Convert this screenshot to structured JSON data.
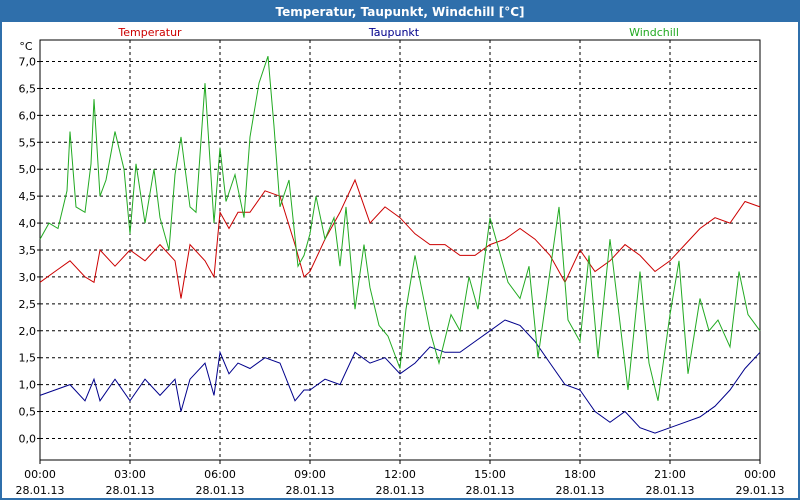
{
  "window": {
    "title": "Temperatur, Taupunkt, Windchill [°C]"
  },
  "colors": {
    "titlebar": "#2f6fab",
    "temperatur": "#cc0000",
    "taupunkt": "#00008b",
    "windchill": "#22aa22",
    "grid": "#000000"
  },
  "chart_data": {
    "type": "line",
    "title": "Temperatur, Taupunkt, Windchill [°C]",
    "ylabel": "°C",
    "ylim": [
      -0.4,
      7.4
    ],
    "y_ticks": [
      "0,0",
      "0,5",
      "1,0",
      "1,5",
      "2,0",
      "2,5",
      "3,0",
      "3,5",
      "4,0",
      "4,5",
      "5,0",
      "5,5",
      "6,0",
      "6,5",
      "7,0"
    ],
    "xlim": [
      0,
      24
    ],
    "x_ticks": [
      {
        "time": "00:00",
        "date": "28.01.13"
      },
      {
        "time": "03:00",
        "date": "28.01.13"
      },
      {
        "time": "06:00",
        "date": "28.01.13"
      },
      {
        "time": "09:00",
        "date": "28.01.13"
      },
      {
        "time": "12:00",
        "date": "28.01.13"
      },
      {
        "time": "15:00",
        "date": "28.01.13"
      },
      {
        "time": "18:00",
        "date": "28.01.13"
      },
      {
        "time": "21:00",
        "date": "28.01.13"
      },
      {
        "time": "00:00",
        "date": "29.01.13"
      }
    ],
    "grid": true,
    "legend": [
      "Temperatur",
      "Taupunkt",
      "Windchill"
    ],
    "series": [
      {
        "name": "Temperatur",
        "x": [
          0,
          0.5,
          1,
          1.5,
          1.8,
          2,
          2.5,
          3,
          3.5,
          4,
          4.5,
          4.7,
          5,
          5.5,
          5.8,
          6,
          6.3,
          6.6,
          7,
          7.5,
          8,
          8.5,
          8.8,
          9,
          9.5,
          10,
          10.5,
          11,
          11.5,
          12,
          12.5,
          13,
          13.5,
          14,
          14.5,
          15,
          15.5,
          16,
          16.5,
          17,
          17.5,
          18,
          18.5,
          19,
          19.5,
          20,
          20.5,
          21,
          21.5,
          22,
          22.5,
          23,
          23.5,
          24
        ],
        "values": [
          2.9,
          3.1,
          3.3,
          3.0,
          2.9,
          3.5,
          3.2,
          3.5,
          3.3,
          3.6,
          3.3,
          2.6,
          3.6,
          3.3,
          3.0,
          4.2,
          3.9,
          4.2,
          4.2,
          4.6,
          4.5,
          3.6,
          3.0,
          3.1,
          3.7,
          4.2,
          4.8,
          4.0,
          4.3,
          4.1,
          3.8,
          3.6,
          3.6,
          3.4,
          3.4,
          3.6,
          3.7,
          3.9,
          3.7,
          3.4,
          2.9,
          3.5,
          3.1,
          3.3,
          3.6,
          3.4,
          3.1,
          3.3,
          3.6,
          3.9,
          4.1,
          4.0,
          4.4,
          4.3
        ]
      },
      {
        "name": "Taupunkt",
        "x": [
          0,
          0.5,
          1,
          1.5,
          1.8,
          2,
          2.5,
          3,
          3.5,
          4,
          4.5,
          4.7,
          5,
          5.5,
          5.8,
          6,
          6.3,
          6.6,
          7,
          7.5,
          8,
          8.5,
          8.8,
          9,
          9.5,
          10,
          10.5,
          11,
          11.5,
          12,
          12.5,
          13,
          13.5,
          14,
          14.5,
          15,
          15.5,
          16,
          16.5,
          17,
          17.5,
          18,
          18.5,
          19,
          19.5,
          20,
          20.5,
          21,
          21.5,
          22,
          22.5,
          23,
          23.5,
          24
        ],
        "values": [
          0.8,
          0.9,
          1.0,
          0.7,
          1.1,
          0.7,
          1.1,
          0.7,
          1.1,
          0.8,
          1.1,
          0.5,
          1.1,
          1.4,
          0.8,
          1.6,
          1.2,
          1.4,
          1.3,
          1.5,
          1.4,
          0.7,
          0.9,
          0.9,
          1.1,
          1.0,
          1.6,
          1.4,
          1.5,
          1.2,
          1.4,
          1.7,
          1.6,
          1.6,
          1.8,
          2.0,
          2.2,
          2.1,
          1.8,
          1.4,
          1.0,
          0.9,
          0.5,
          0.3,
          0.5,
          0.2,
          0.1,
          0.2,
          0.3,
          0.4,
          0.6,
          0.9,
          1.3,
          1.6
        ]
      },
      {
        "name": "Windchill",
        "x": [
          0,
          0.3,
          0.6,
          0.9,
          1.0,
          1.2,
          1.5,
          1.7,
          1.8,
          2.0,
          2.2,
          2.5,
          2.8,
          3.0,
          3.2,
          3.5,
          3.8,
          4.0,
          4.3,
          4.5,
          4.7,
          5.0,
          5.2,
          5.5,
          5.8,
          6.0,
          6.2,
          6.5,
          6.8,
          7.0,
          7.3,
          7.6,
          7.8,
          8.0,
          8.3,
          8.6,
          8.8,
          9.0,
          9.2,
          9.5,
          9.8,
          10.0,
          10.2,
          10.5,
          10.8,
          11.0,
          11.3,
          11.6,
          12.0,
          12.2,
          12.5,
          13.0,
          13.3,
          13.7,
          14.0,
          14.3,
          14.6,
          15.0,
          15.3,
          15.6,
          16.0,
          16.3,
          16.6,
          17.0,
          17.3,
          17.6,
          18.0,
          18.3,
          18.6,
          19.0,
          19.3,
          19.6,
          20.0,
          20.3,
          20.6,
          21.0,
          21.3,
          21.6,
          22.0,
          22.3,
          22.6,
          23.0,
          23.3,
          23.6,
          24.0
        ],
        "values": [
          3.7,
          4.0,
          3.9,
          4.6,
          5.7,
          4.3,
          4.2,
          5.1,
          6.3,
          4.5,
          4.8,
          5.7,
          5.0,
          3.8,
          5.1,
          4.0,
          5.0,
          4.1,
          3.5,
          4.9,
          5.6,
          4.3,
          4.2,
          6.6,
          4.0,
          5.4,
          4.4,
          4.9,
          4.1,
          5.6,
          6.6,
          7.1,
          5.8,
          4.3,
          4.8,
          3.2,
          3.4,
          3.8,
          4.5,
          3.7,
          4.1,
          3.2,
          4.3,
          2.4,
          3.6,
          2.8,
          2.1,
          1.9,
          1.3,
          2.4,
          3.4,
          2.0,
          1.4,
          2.3,
          2.0,
          3.0,
          2.4,
          4.1,
          3.5,
          2.9,
          2.6,
          3.2,
          1.5,
          3.1,
          4.3,
          2.2,
          1.8,
          3.4,
          1.5,
          3.7,
          2.3,
          0.9,
          3.1,
          1.4,
          0.7,
          2.3,
          3.3,
          1.2,
          2.6,
          2.0,
          2.2,
          1.7,
          3.1,
          2.3,
          2.0
        ]
      }
    ]
  }
}
